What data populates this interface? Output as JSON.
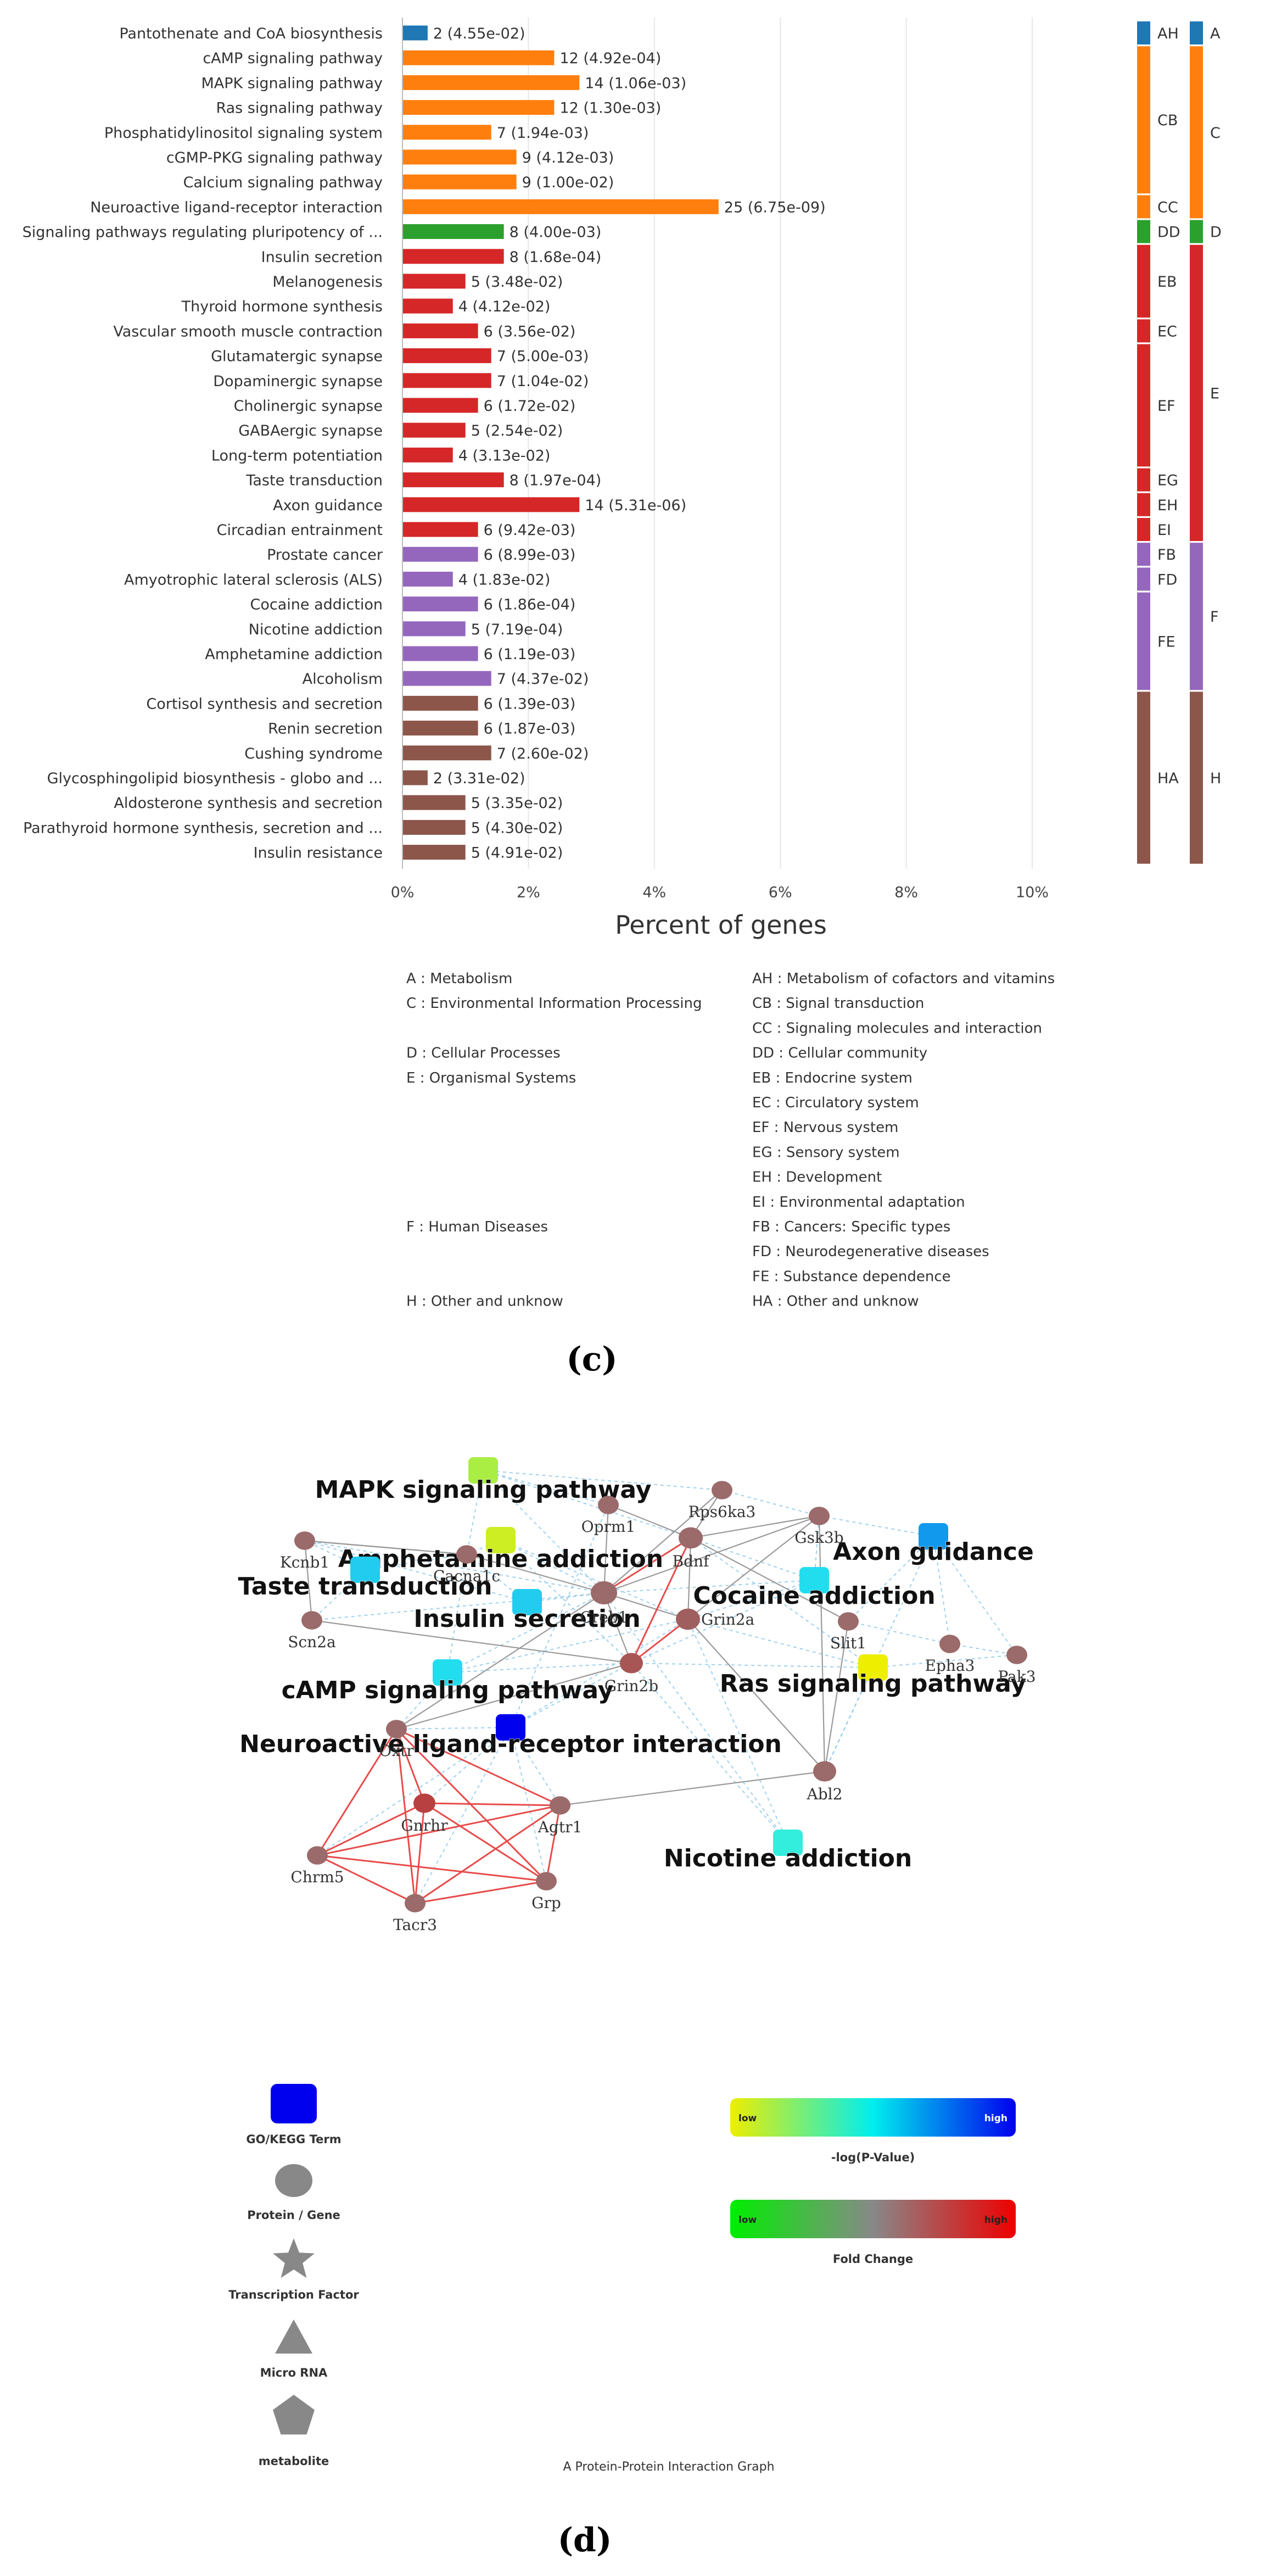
{
  "panel_c": {
    "caption": "(c)",
    "chart_data": {
      "type": "bar",
      "orientation": "horizontal",
      "xlabel": "Percent of genes",
      "xticks": [
        "0%",
        "2%",
        "4%",
        "6%",
        "8%",
        "10%"
      ],
      "xlim": [
        0,
        10
      ],
      "bars": [
        {
          "label": "Pantothenate and CoA biosynthesis",
          "count": 2,
          "pvalue": "4.55e-02",
          "percent": 0.4,
          "group": "A",
          "subgroup": "AH"
        },
        {
          "label": "cAMP signaling pathway",
          "count": 12,
          "pvalue": "4.92e-04",
          "percent": 2.41,
          "group": "C",
          "subgroup": "CB"
        },
        {
          "label": "MAPK signaling pathway",
          "count": 14,
          "pvalue": "1.06e-03",
          "percent": 2.81,
          "group": "C",
          "subgroup": "CB"
        },
        {
          "label": "Ras signaling pathway",
          "count": 12,
          "pvalue": "1.30e-03",
          "percent": 2.41,
          "group": "C",
          "subgroup": "CB"
        },
        {
          "label": "Phosphatidylinositol signaling system",
          "count": 7,
          "pvalue": "1.94e-03",
          "percent": 1.41,
          "group": "C",
          "subgroup": "CB"
        },
        {
          "label": "cGMP-PKG signaling pathway",
          "count": 9,
          "pvalue": "4.12e-03",
          "percent": 1.81,
          "group": "C",
          "subgroup": "CB"
        },
        {
          "label": "Calcium signaling pathway",
          "count": 9,
          "pvalue": "1.00e-02",
          "percent": 1.81,
          "group": "C",
          "subgroup": "CB"
        },
        {
          "label": "Neuroactive ligand-receptor interaction",
          "count": 25,
          "pvalue": "6.75e-09",
          "percent": 5.02,
          "group": "C",
          "subgroup": "CC"
        },
        {
          "label": "Signaling pathways regulating pluripotency of ...",
          "count": 8,
          "pvalue": "4.00e-03",
          "percent": 1.61,
          "group": "D",
          "subgroup": "DD"
        },
        {
          "label": "Insulin secretion",
          "count": 8,
          "pvalue": "1.68e-04",
          "percent": 1.61,
          "group": "E",
          "subgroup": "EB"
        },
        {
          "label": "Melanogenesis",
          "count": 5,
          "pvalue": "3.48e-02",
          "percent": 1.0,
          "group": "E",
          "subgroup": "EB"
        },
        {
          "label": "Thyroid hormone synthesis",
          "count": 4,
          "pvalue": "4.12e-02",
          "percent": 0.8,
          "group": "E",
          "subgroup": "EB"
        },
        {
          "label": "Vascular smooth muscle contraction",
          "count": 6,
          "pvalue": "3.56e-02",
          "percent": 1.2,
          "group": "E",
          "subgroup": "EC"
        },
        {
          "label": "Glutamatergic synapse",
          "count": 7,
          "pvalue": "5.00e-03",
          "percent": 1.41,
          "group": "E",
          "subgroup": "EF"
        },
        {
          "label": "Dopaminergic synapse",
          "count": 7,
          "pvalue": "1.04e-02",
          "percent": 1.41,
          "group": "E",
          "subgroup": "EF"
        },
        {
          "label": "Cholinergic synapse",
          "count": 6,
          "pvalue": "1.72e-02",
          "percent": 1.2,
          "group": "E",
          "subgroup": "EF"
        },
        {
          "label": "GABAergic synapse",
          "count": 5,
          "pvalue": "2.54e-02",
          "percent": 1.0,
          "group": "E",
          "subgroup": "EF"
        },
        {
          "label": "Long-term potentiation",
          "count": 4,
          "pvalue": "3.13e-02",
          "percent": 0.8,
          "group": "E",
          "subgroup": "EF"
        },
        {
          "label": "Taste transduction",
          "count": 8,
          "pvalue": "1.97e-04",
          "percent": 1.61,
          "group": "E",
          "subgroup": "EG"
        },
        {
          "label": "Axon guidance",
          "count": 14,
          "pvalue": "5.31e-06",
          "percent": 2.81,
          "group": "E",
          "subgroup": "EH"
        },
        {
          "label": "Circadian entrainment",
          "count": 6,
          "pvalue": "9.42e-03",
          "percent": 1.2,
          "group": "E",
          "subgroup": "EI"
        },
        {
          "label": "Prostate cancer",
          "count": 6,
          "pvalue": "8.99e-03",
          "percent": 1.2,
          "group": "F",
          "subgroup": "FB"
        },
        {
          "label": "Amyotrophic lateral sclerosis (ALS)",
          "count": 4,
          "pvalue": "1.83e-02",
          "percent": 0.8,
          "group": "F",
          "subgroup": "FD"
        },
        {
          "label": "Cocaine addiction",
          "count": 6,
          "pvalue": "1.86e-04",
          "percent": 1.2,
          "group": "F",
          "subgroup": "FE"
        },
        {
          "label": "Nicotine addiction",
          "count": 5,
          "pvalue": "7.19e-04",
          "percent": 1.0,
          "group": "F",
          "subgroup": "FE"
        },
        {
          "label": "Amphetamine addiction",
          "count": 6,
          "pvalue": "1.19e-03",
          "percent": 1.2,
          "group": "F",
          "subgroup": "FE"
        },
        {
          "label": "Alcoholism",
          "count": 7,
          "pvalue": "4.37e-02",
          "percent": 1.41,
          "group": "F",
          "subgroup": "FE"
        },
        {
          "label": "Cortisol synthesis and secretion",
          "count": 6,
          "pvalue": "1.39e-03",
          "percent": 1.2,
          "group": "H",
          "subgroup": "HA"
        },
        {
          "label": "Renin secretion",
          "count": 6,
          "pvalue": "1.87e-03",
          "percent": 1.2,
          "group": "H",
          "subgroup": "HA"
        },
        {
          "label": "Cushing syndrome",
          "count": 7,
          "pvalue": "2.60e-02",
          "percent": 1.41,
          "group": "H",
          "subgroup": "HA"
        },
        {
          "label": "Glycosphingolipid biosynthesis - globo and ...",
          "count": 2,
          "pvalue": "3.31e-02",
          "percent": 0.4,
          "group": "H",
          "subgroup": "HA"
        },
        {
          "label": "Aldosterone synthesis and secretion",
          "count": 5,
          "pvalue": "3.35e-02",
          "percent": 1.0,
          "group": "H",
          "subgroup": "HA"
        },
        {
          "label": "Parathyroid hormone synthesis, secretion and ...",
          "count": 5,
          "pvalue": "4.30e-02",
          "percent": 1.0,
          "group": "H",
          "subgroup": "HA"
        },
        {
          "label": "Insulin resistance",
          "count": 5,
          "pvalue": "4.91e-02",
          "percent": 1.0,
          "group": "H",
          "subgroup": "HA"
        }
      ],
      "group_colors": {
        "A": "#1f77b4",
        "C": "#ff7f0e",
        "D": "#2ca02c",
        "E": "#d62728",
        "F": "#9467bd",
        "H": "#8c564b"
      },
      "subgroup_bands": [
        {
          "code": "AH",
          "group": "A"
        },
        {
          "code": "CB",
          "group": "C"
        },
        {
          "code": "CC",
          "group": "C"
        },
        {
          "code": "DD",
          "group": "D"
        },
        {
          "code": "EB",
          "group": "E"
        },
        {
          "code": "EC",
          "group": "E"
        },
        {
          "code": "EF",
          "group": "E"
        },
        {
          "code": "EG",
          "group": "E"
        },
        {
          "code": "EH",
          "group": "E"
        },
        {
          "code": "EI",
          "group": "E"
        },
        {
          "code": "FB",
          "group": "F"
        },
        {
          "code": "FD",
          "group": "F"
        },
        {
          "code": "FE",
          "group": "F"
        },
        {
          "code": "HA",
          "group": "H"
        }
      ],
      "group_bands": [
        {
          "code": "A"
        },
        {
          "code": "C"
        },
        {
          "code": "D"
        },
        {
          "code": "E"
        },
        {
          "code": "F"
        },
        {
          "code": "H"
        }
      ],
      "legend_left": [
        {
          "text": "A : Metabolism",
          "slot": 0
        },
        {
          "text": "C : Environmental Information Processing",
          "slot": 1
        },
        {
          "text": "D : Cellular Processes",
          "slot": 3
        },
        {
          "text": "E : Organismal Systems",
          "slot": 4
        },
        {
          "text": "F : Human Diseases",
          "slot": 10
        },
        {
          "text": "H : Other and unknow",
          "slot": 13
        }
      ],
      "legend_right": [
        "AH : Metabolism of cofactors and vitamins",
        "CB : Signal transduction",
        "CC : Signaling molecules and interaction",
        "DD : Cellular community",
        "EB : Endocrine system",
        "EC : Circulatory system",
        "EF : Nervous system",
        "EG : Sensory system",
        "EH : Development",
        "EI : Environmental adaptation",
        "FB : Cancers: Specific types",
        "FD : Neurodegenerative diseases",
        "FE : Substance dependence",
        "HA : Other and unknow"
      ]
    }
  },
  "panel_d": {
    "caption": "(d)",
    "graph_title": "A Protein-Protein Interaction Graph",
    "terms": [
      {
        "id": "mapk",
        "label": "MAPK signaling pathway",
        "color": "#aaee44"
      },
      {
        "id": "amph",
        "label": "Amphetamine addiction",
        "color": "#ccee22"
      },
      {
        "id": "axon",
        "label": "Axon guidance",
        "color": "#1199ee"
      },
      {
        "id": "taste",
        "label": "Taste transduction",
        "color": "#22ccee"
      },
      {
        "id": "cocaine",
        "label": "Cocaine addiction",
        "color": "#22ddee"
      },
      {
        "id": "insulin",
        "label": "Insulin secretion",
        "color": "#22ccee"
      },
      {
        "id": "camp",
        "label": "cAMP signaling pathway",
        "color": "#22ddee"
      },
      {
        "id": "ras",
        "label": "Ras signaling pathway",
        "color": "#eeee00"
      },
      {
        "id": "neuro",
        "label": "Neuroactive ligand-receptor interaction",
        "color": "#0000ee"
      },
      {
        "id": "nicotine",
        "label": "Nicotine addiction",
        "color": "#33eedd"
      }
    ],
    "genes": [
      {
        "id": "Oprm1",
        "label": "Oprm1",
        "color": "#9b6a6a"
      },
      {
        "id": "Rps6ka3",
        "label": "Rps6ka3",
        "color": "#9b6a6a"
      },
      {
        "id": "Kcnb1",
        "label": "Kcnb1",
        "color": "#9b6a6a"
      },
      {
        "id": "Gsk3b",
        "label": "Gsk3b",
        "color": "#9b6a6a"
      },
      {
        "id": "Bdnf",
        "label": "Bdnf",
        "color": "#9b6a6a"
      },
      {
        "id": "Cacna1c",
        "label": "Cacna1c",
        "color": "#9b6a6a"
      },
      {
        "id": "Creb1",
        "label": "Creb1",
        "color": "#9b6a6a"
      },
      {
        "id": "Scn2a",
        "label": "Scn2a",
        "color": "#9b6a6a"
      },
      {
        "id": "Grin2a",
        "label": "Grin2a",
        "color": "#a05f5f"
      },
      {
        "id": "Slit1",
        "label": "Slit1",
        "color": "#9b6a6a"
      },
      {
        "id": "Epha3",
        "label": "Epha3",
        "color": "#9b6a6a"
      },
      {
        "id": "Pak3",
        "label": "Pak3",
        "color": "#9b6a6a"
      },
      {
        "id": "Grin2b",
        "label": "Grin2b",
        "color": "#a85555"
      },
      {
        "id": "Oxtr",
        "label": "Oxtr",
        "color": "#9b6a6a"
      },
      {
        "id": "Abl2",
        "label": "Abl2",
        "color": "#9b6a6a"
      },
      {
        "id": "Gnrhr",
        "label": "Gnrhr",
        "color": "#b84040"
      },
      {
        "id": "Agtr1",
        "label": "Agtr1",
        "color": "#9b6a6a"
      },
      {
        "id": "Chrm5",
        "label": "Chrm5",
        "color": "#9b6a6a"
      },
      {
        "id": "Grp",
        "label": "Grp",
        "color": "#9b6a6a"
      },
      {
        "id": "Tacr3",
        "label": "Tacr3",
        "color": "#9b6a6a"
      }
    ],
    "legend": {
      "shapes": [
        {
          "label": "GO/KEGG Term",
          "shape": "square",
          "color": "#0000ee"
        },
        {
          "label": "Protein / Gene",
          "shape": "circle",
          "color": "#888888"
        },
        {
          "label": "Transcription Factor",
          "shape": "star",
          "color": "#888888"
        },
        {
          "label": "Micro RNA",
          "shape": "triangle",
          "color": "#888888"
        },
        {
          "label": "metabolite",
          "shape": "pentagon",
          "color": "#888888"
        }
      ],
      "gradients": [
        {
          "title": "-log(P-Value)",
          "low": "low",
          "high": "high",
          "colors": [
            "#eeee00",
            "#00eeee",
            "#0000ee"
          ]
        },
        {
          "title": "Fold Change",
          "low": "low",
          "high": "high",
          "colors": [
            "#00ee00",
            "#888888",
            "#ee0000"
          ]
        }
      ]
    }
  }
}
